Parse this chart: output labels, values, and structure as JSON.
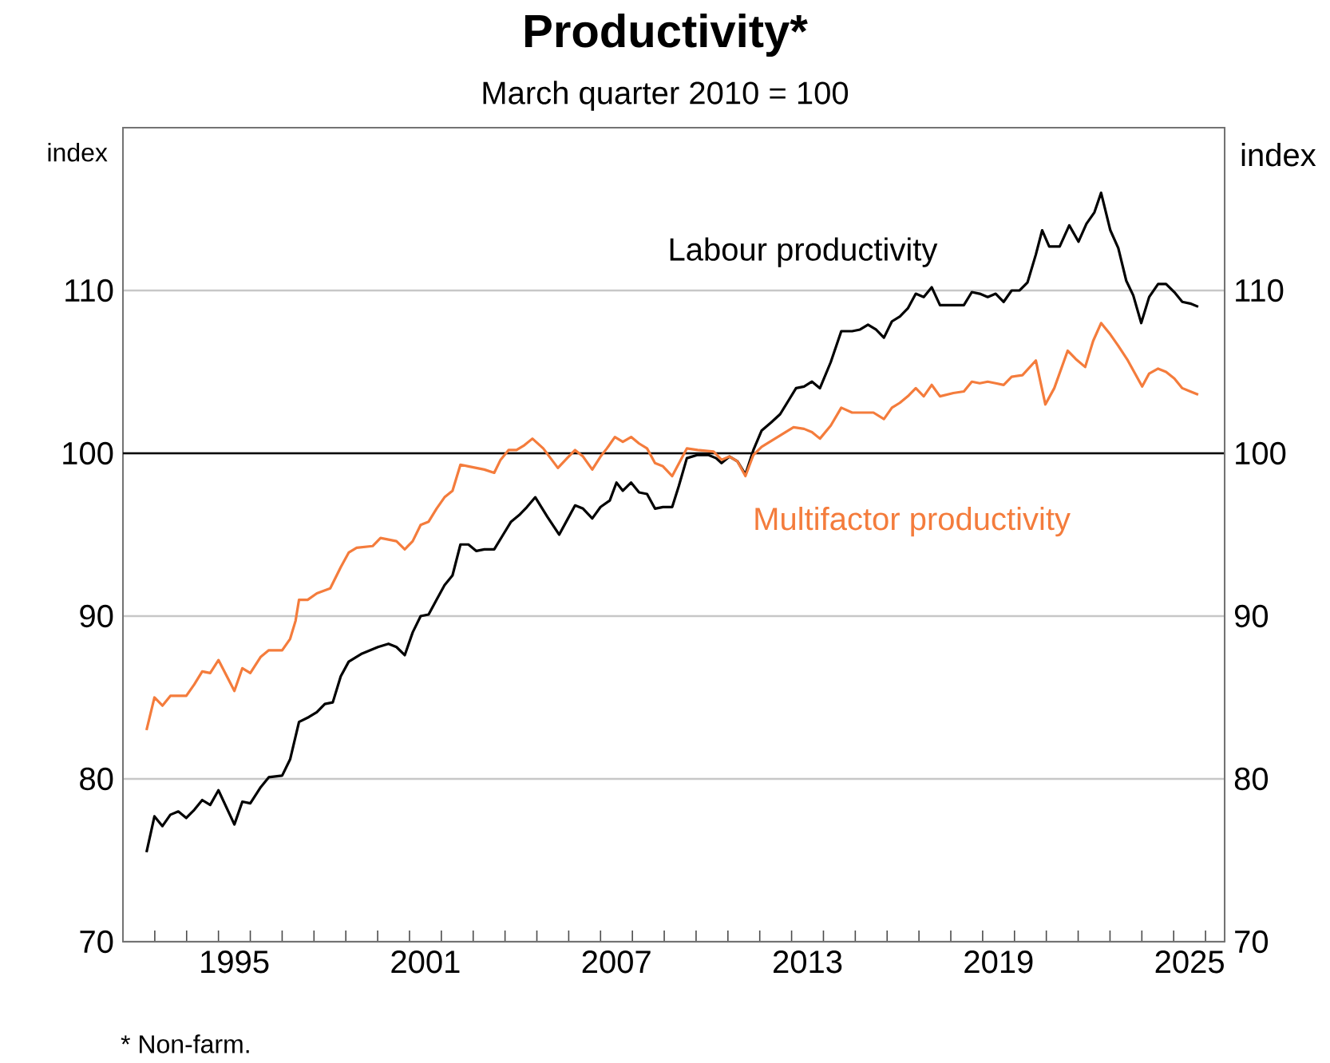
{
  "chart_data": {
    "type": "line",
    "title": "Productivity*",
    "subtitle": "March quarter 2010 = 100",
    "ylabel": "index",
    "y2label": "index",
    "annotations": [
      "* Non-farm."
    ],
    "xlim": [
      1992,
      2026.6
    ],
    "ylim": [
      70,
      120
    ],
    "y2lim": [
      70,
      120
    ],
    "yticks": [
      70,
      80,
      90,
      100,
      110
    ],
    "y2ticks": [
      70,
      80,
      90,
      100,
      110
    ],
    "xticks": [
      {
        "value": 1993,
        "label": null
      },
      {
        "value": 1994,
        "label": null
      },
      {
        "value": 1995,
        "label": null
      },
      {
        "value": 1996,
        "label": null
      },
      {
        "value": 1997,
        "label": null
      },
      {
        "value": 1998,
        "label": null
      },
      {
        "value": 1999,
        "label": null
      },
      {
        "value": 2000,
        "label": null
      },
      {
        "value": 2001,
        "label": null
      },
      {
        "value": 2002,
        "label": null
      },
      {
        "value": 2003,
        "label": null
      },
      {
        "value": 2004,
        "label": null
      },
      {
        "value": 2005,
        "label": null
      },
      {
        "value": 2006,
        "label": null
      },
      {
        "value": 2007,
        "label": null
      },
      {
        "value": 2008,
        "label": null
      },
      {
        "value": 2009,
        "label": null
      },
      {
        "value": 2010,
        "label": null
      },
      {
        "value": 2011,
        "label": null
      },
      {
        "value": 2012,
        "label": null
      },
      {
        "value": 2013,
        "label": null
      },
      {
        "value": 2014,
        "label": null
      },
      {
        "value": 2015,
        "label": null
      },
      {
        "value": 2016,
        "label": null
      },
      {
        "value": 2017,
        "label": null
      },
      {
        "value": 2018,
        "label": null
      },
      {
        "value": 2019,
        "label": null
      },
      {
        "value": 2020,
        "label": null
      },
      {
        "value": 2021,
        "label": null
      },
      {
        "value": 2022,
        "label": null
      },
      {
        "value": 2023,
        "label": null
      },
      {
        "value": 2024,
        "label": null
      },
      {
        "value": 2025,
        "label": null
      },
      {
        "value": 2026,
        "label": null
      },
      {
        "value": 1995.5,
        "label": "1995"
      },
      {
        "value": 2001.5,
        "label": "2001"
      },
      {
        "value": 2007.5,
        "label": "2007"
      },
      {
        "value": 2013.5,
        "label": "2013"
      },
      {
        "value": 2019.5,
        "label": "2019"
      },
      {
        "value": 2025.5,
        "label": "2025"
      }
    ],
    "grid": "y",
    "ref_lines": [
      {
        "axis": "y",
        "value": 100,
        "color": "#000000"
      }
    ],
    "series": [
      {
        "name": "Labour productivity",
        "color": "#000000",
        "x": [
          1992.74,
          1992.99,
          1993.24,
          1993.49,
          1993.74,
          1993.99,
          1994.24,
          1994.49,
          1994.74,
          1995.0,
          1995.5,
          1995.75,
          1996.0,
          1996.33,
          1996.58,
          1997.0,
          1997.25,
          1997.53,
          1997.84,
          1998.09,
          1998.34,
          1998.59,
          1998.84,
          1999.09,
          1999.51,
          2000.01,
          2000.34,
          2000.59,
          2000.85,
          2001.1,
          2001.35,
          2001.6,
          2001.85,
          2002.1,
          2002.35,
          2002.6,
          2002.85,
          2003.1,
          2003.35,
          2003.66,
          2003.94,
          2004.19,
          2004.44,
          2004.69,
          2004.95,
          2005.33,
          2005.7,
          2005.95,
          2006.2,
          2006.45,
          2006.74,
          2007.0,
          2007.29,
          2007.5,
          2007.7,
          2007.96,
          2008.21,
          2008.46,
          2008.71,
          2008.96,
          2009.25,
          2009.46,
          2009.71,
          2010.05,
          2010.38,
          2010.63,
          2010.8,
          2011.05,
          2011.3,
          2011.55,
          2011.8,
          2012.06,
          2012.36,
          2012.64,
          2012.89,
          2013.14,
          2013.39,
          2013.64,
          2013.89,
          2014.23,
          2014.56,
          2014.9,
          2015.15,
          2015.4,
          2015.65,
          2015.9,
          2016.15,
          2016.4,
          2016.65,
          2016.9,
          2017.15,
          2017.4,
          2017.66,
          2018.08,
          2018.41,
          2018.66,
          2018.91,
          2019.16,
          2019.41,
          2019.66,
          2019.91,
          2020.16,
          2020.41,
          2020.67,
          2020.87,
          2021.09,
          2021.42,
          2021.72,
          2022.01,
          2022.26,
          2022.51,
          2022.72,
          2023.01,
          2023.26,
          2023.51,
          2023.73,
          2023.98,
          2024.23,
          2024.51,
          2024.76,
          2025.02,
          2025.27,
          2025.52,
          2025.77
        ],
        "values": [
          75.5,
          77.7,
          77.1,
          77.8,
          78.0,
          77.6,
          78.1,
          78.7,
          78.4,
          79.3,
          77.2,
          78.6,
          78.5,
          79.5,
          80.1,
          80.2,
          81.2,
          83.5,
          83.8,
          84.1,
          84.6,
          84.7,
          86.3,
          87.2,
          87.7,
          88.1,
          88.3,
          88.1,
          87.6,
          89.0,
          90.0,
          90.1,
          91.0,
          91.9,
          92.5,
          94.4,
          94.4,
          94.0,
          94.1,
          94.1,
          95.0,
          95.8,
          96.2,
          96.7,
          97.3,
          96.1,
          95.0,
          95.9,
          96.8,
          96.6,
          96.0,
          96.7,
          97.1,
          98.2,
          97.7,
          98.2,
          97.6,
          97.5,
          96.6,
          96.7,
          96.7,
          98.0,
          99.7,
          99.9,
          99.9,
          99.7,
          99.4,
          99.8,
          99.5,
          98.7,
          100.2,
          101.4,
          101.9,
          102.4,
          103.2,
          104.0,
          104.1,
          104.4,
          104.0,
          105.6,
          107.5,
          107.5,
          107.6,
          107.9,
          107.6,
          107.1,
          108.1,
          108.4,
          108.9,
          109.8,
          109.6,
          110.2,
          109.1,
          109.1,
          109.1,
          109.9,
          109.8,
          109.6,
          109.8,
          109.3,
          110.0,
          110.0,
          110.5,
          112.2,
          113.7,
          112.7,
          112.7,
          114.0,
          113.0,
          114.1,
          114.8,
          116.0,
          113.7,
          112.6,
          110.6,
          109.7,
          108.0,
          109.6,
          110.4,
          110.4,
          109.9,
          109.3,
          109.2,
          109.0
        ]
      },
      {
        "name": "Multifactor productivity",
        "color": "#f47c3c",
        "x": [
          1992.74,
          1992.99,
          1993.24,
          1993.49,
          1993.99,
          1994.24,
          1994.49,
          1994.74,
          1995.0,
          1995.5,
          1995.75,
          1996.0,
          1996.33,
          1996.58,
          1997.0,
          1997.25,
          1997.42,
          1997.53,
          1997.8,
          1998.09,
          1998.51,
          1998.84,
          1999.09,
          1999.34,
          1999.84,
          2000.09,
          2000.34,
          2000.59,
          2000.85,
          2001.1,
          2001.35,
          2001.6,
          2001.85,
          2002.1,
          2002.35,
          2002.6,
          2002.85,
          2003.35,
          2003.66,
          2003.86,
          2004.11,
          2004.36,
          2004.61,
          2004.86,
          2005.2,
          2005.66,
          2005.95,
          2006.2,
          2006.45,
          2006.74,
          2007.0,
          2007.2,
          2007.45,
          2007.7,
          2007.96,
          2008.21,
          2008.46,
          2008.71,
          2008.96,
          2009.25,
          2009.55,
          2009.71,
          2010.05,
          2010.55,
          2010.8,
          2011.05,
          2011.3,
          2011.55,
          2011.8,
          2012.06,
          2012.56,
          2013.06,
          2013.39,
          2013.64,
          2013.89,
          2014.23,
          2014.56,
          2014.9,
          2015.57,
          2015.9,
          2016.15,
          2016.4,
          2016.65,
          2016.9,
          2017.15,
          2017.4,
          2017.66,
          2018.08,
          2018.41,
          2018.66,
          2018.91,
          2019.16,
          2019.41,
          2019.66,
          2019.91,
          2020.25,
          2020.67,
          2020.97,
          2021.25,
          2021.67,
          2021.92,
          2022.22,
          2022.47,
          2022.72,
          2023.01,
          2023.26,
          2023.56,
          2024.01,
          2024.23,
          2024.51,
          2024.76,
          2025.02,
          2025.27,
          2025.52,
          2025.77
        ],
        "values": [
          83.0,
          85.0,
          84.5,
          85.1,
          85.1,
          85.8,
          86.6,
          86.5,
          87.3,
          85.4,
          86.8,
          86.5,
          87.5,
          87.9,
          87.9,
          88.6,
          89.7,
          91.0,
          91.0,
          91.4,
          91.7,
          93.0,
          93.9,
          94.2,
          94.3,
          94.8,
          94.7,
          94.6,
          94.1,
          94.6,
          95.6,
          95.8,
          96.6,
          97.3,
          97.7,
          99.3,
          99.2,
          99.0,
          98.8,
          99.6,
          100.2,
          100.2,
          100.5,
          100.9,
          100.3,
          99.1,
          99.7,
          100.2,
          99.8,
          99.0,
          99.8,
          100.3,
          101.0,
          100.7,
          101.0,
          100.6,
          100.3,
          99.4,
          99.2,
          98.6,
          99.7,
          100.3,
          100.2,
          100.1,
          99.6,
          99.8,
          99.5,
          98.6,
          99.9,
          100.4,
          101.0,
          101.6,
          101.5,
          101.3,
          100.9,
          101.7,
          102.8,
          102.5,
          102.5,
          102.1,
          102.8,
          103.1,
          103.5,
          104.0,
          103.5,
          104.2,
          103.5,
          103.7,
          103.8,
          104.4,
          104.3,
          104.4,
          104.3,
          104.2,
          104.7,
          104.8,
          105.7,
          103.0,
          104.0,
          106.3,
          105.8,
          105.3,
          106.9,
          108.0,
          107.3,
          106.6,
          105.7,
          104.1,
          104.9,
          105.2,
          105.0,
          104.6,
          104.0,
          103.8,
          103.6
        ]
      }
    ]
  }
}
